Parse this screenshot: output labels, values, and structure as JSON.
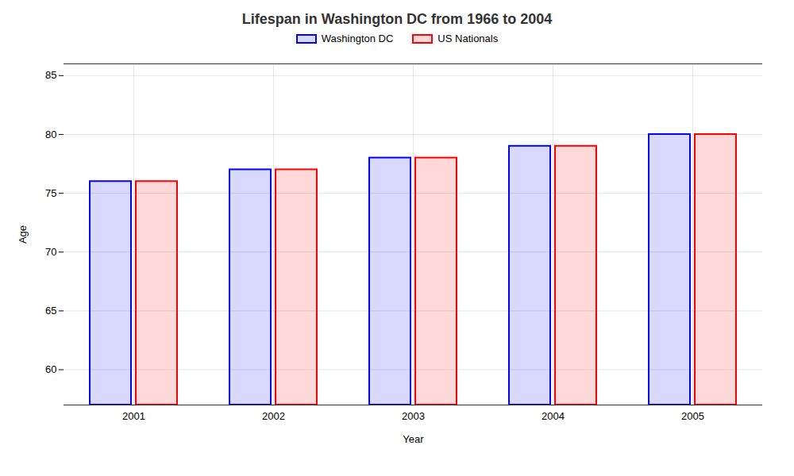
{
  "chart_data": {
    "type": "bar",
    "title": "Lifespan in Washington DC from 1966 to 2004",
    "xlabel": "Year",
    "ylabel": "Age",
    "categories": [
      "2001",
      "2002",
      "2003",
      "2004",
      "2005"
    ],
    "series": [
      {
        "name": "Washington DC",
        "color": "#0000ff",
        "values": [
          76,
          77,
          78,
          79,
          80
        ]
      },
      {
        "name": "US Nationals",
        "color": "#ff0000",
        "values": [
          76,
          77,
          78,
          79,
          80
        ]
      }
    ],
    "ylim": [
      57,
      86
    ],
    "yticks": [
      60,
      65,
      70,
      75,
      80,
      85
    ],
    "grid": true,
    "legend": "top"
  }
}
